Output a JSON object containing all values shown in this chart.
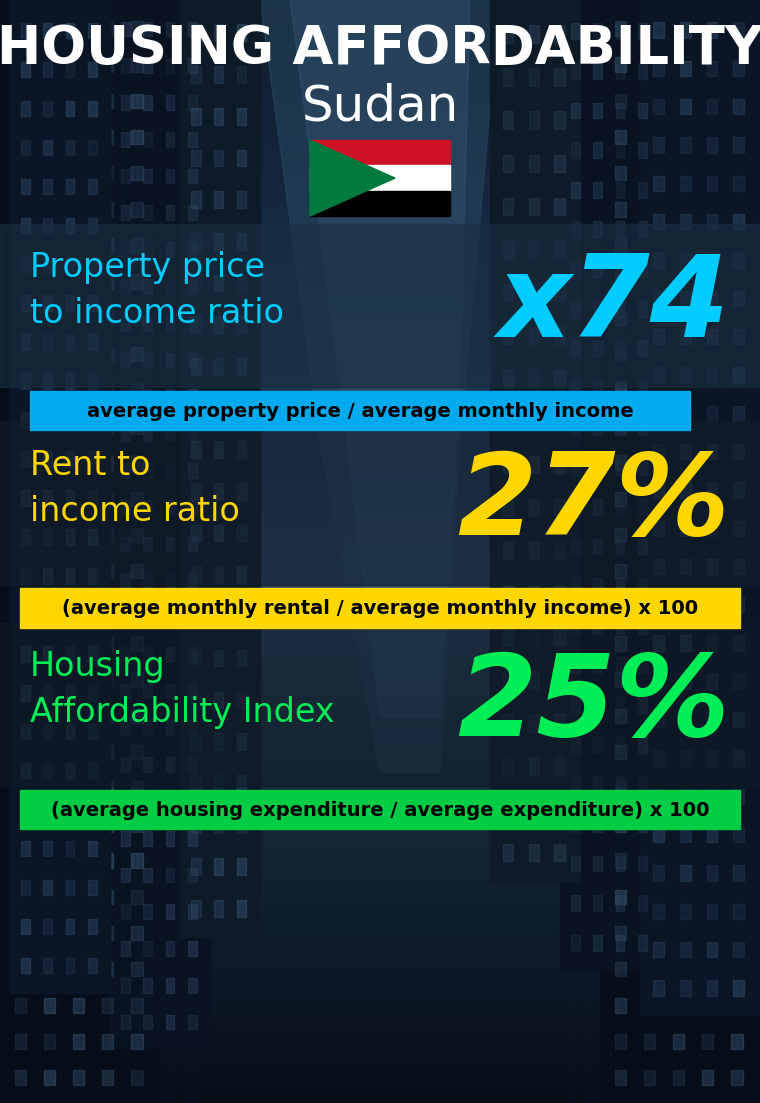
{
  "title_line1": "HOUSING AFFORDABILITY",
  "title_line2": "Sudan",
  "flag_colors": {
    "red": "#CE1126",
    "white": "#FFFFFF",
    "black": "#000000",
    "green": "#007A3D"
  },
  "section1_label": "Property price\nto income ratio",
  "section1_value": "x74",
  "section1_label_color": "#00CCFF",
  "section1_value_color": "#00CCFF",
  "section1_banner_text": "average property price / average monthly income",
  "section1_banner_bg": "#00AAEE",
  "section1_banner_text_color": "#000000",
  "section2_label": "Rent to\nincome ratio",
  "section2_value": "27%",
  "section2_label_color": "#FFD700",
  "section2_value_color": "#FFD700",
  "section2_banner_text": "(average monthly rental / average monthly income) x 100",
  "section2_banner_bg": "#FFD700",
  "section2_banner_text_color": "#000000",
  "section3_label": "Housing\nAffordability Index",
  "section3_value": "25%",
  "section3_label_color": "#00EE55",
  "section3_value_color": "#00EE55",
  "section3_banner_text": "(average housing expenditure / average expenditure) x 100",
  "section3_banner_bg": "#00CC44",
  "section3_banner_text_color": "#000000",
  "title_color": "#FFFFFF",
  "subtitle_color": "#FFFFFF"
}
